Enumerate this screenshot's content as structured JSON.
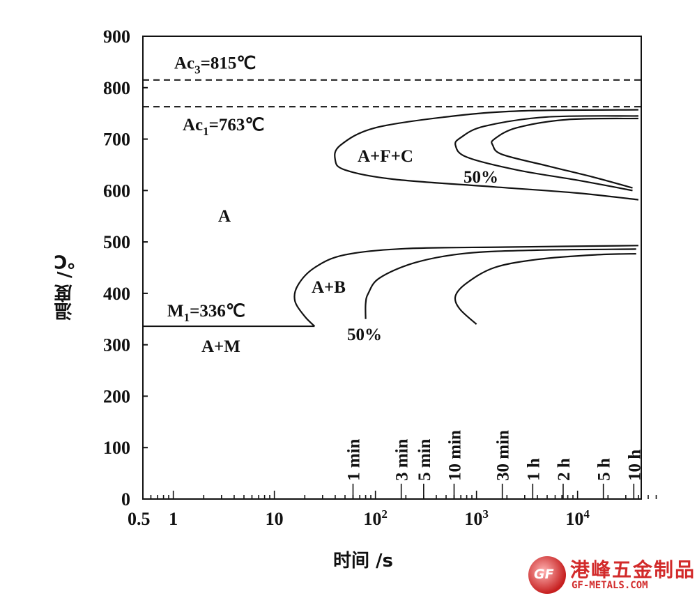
{
  "chart_data": {
    "type": "line",
    "title": "",
    "xlabel": "时间 /s",
    "ylabel": "温度 /℃",
    "x_scale": "log",
    "xlim": [
      0.5,
      60000
    ],
    "ylim": [
      0,
      900
    ],
    "x_tick_labels": [
      {
        "value": 0.5,
        "label": "0.5"
      },
      {
        "value": 1,
        "label": "1"
      },
      {
        "value": 10,
        "label": "10"
      },
      {
        "value": 100,
        "label": "10",
        "sup": "2"
      },
      {
        "value": 1000,
        "label": "10",
        "sup": "3"
      },
      {
        "value": 10000,
        "label": "10",
        "sup": "4"
      }
    ],
    "y_ticks": [
      0,
      100,
      200,
      300,
      400,
      500,
      600,
      700,
      800,
      900
    ],
    "time_markers": [
      {
        "label": "1 min",
        "value": 60
      },
      {
        "label": "3 min",
        "value": 180
      },
      {
        "label": "5 min",
        "value": 300
      },
      {
        "label": "10 min",
        "value": 600
      },
      {
        "label": "30 min",
        "value": 1800
      },
      {
        "label": "1 h",
        "value": 3600
      },
      {
        "label": "2 h",
        "value": 7200
      },
      {
        "label": "5 h",
        "value": 18000
      },
      {
        "label": "10 h",
        "value": 36000
      }
    ],
    "reference_lines": [
      {
        "name": "Ac3",
        "label_main": "Ac",
        "label_sub": "3",
        "label_rest": "=815℃",
        "y": 815,
        "style": "dashed"
      },
      {
        "name": "Ac1",
        "label_main": "Ac",
        "label_sub": "1",
        "label_rest": "=763℃",
        "y": 763,
        "style": "dashed"
      },
      {
        "name": "M1",
        "label_main": "M",
        "label_sub": "1",
        "label_rest": "=336℃",
        "y": 336,
        "style": "solid"
      }
    ],
    "series": [
      {
        "name": "",
        "points": [
          [
            40000,
            757
          ],
          [
            3000,
            755
          ],
          [
            600,
            745
          ],
          [
            100,
            722
          ],
          [
            45,
            688
          ],
          [
            40,
            660
          ],
          [
            50,
            640
          ],
          [
            150,
            622
          ],
          [
            1500,
            607
          ],
          [
            10000,
            595
          ],
          [
            40000,
            582
          ]
        ]
      },
      {
        "name": "",
        "points": [
          [
            40000,
            745
          ],
          [
            5000,
            743
          ],
          [
            1200,
            725
          ],
          [
            700,
            703
          ],
          [
            620,
            688
          ],
          [
            800,
            665
          ],
          [
            2500,
            640
          ],
          [
            10000,
            620
          ],
          [
            35000,
            600
          ]
        ]
      },
      {
        "name": "",
        "points": [
          [
            40000,
            740
          ],
          [
            8000,
            738
          ],
          [
            2500,
            722
          ],
          [
            1500,
            700
          ],
          [
            1450,
            688
          ],
          [
            1800,
            670
          ],
          [
            5000,
            648
          ],
          [
            15000,
            625
          ],
          [
            35000,
            605
          ]
        ]
      },
      {
        "name": "",
        "points": [
          [
            40000,
            493
          ],
          [
            2000,
            490
          ],
          [
            200,
            487
          ],
          [
            50,
            475
          ],
          [
            25,
            450
          ],
          [
            17,
            415
          ],
          [
            16,
            385
          ],
          [
            20,
            355
          ],
          [
            25,
            336
          ]
        ]
      },
      {
        "name": "",
        "points": [
          [
            38000,
            486
          ],
          [
            4000,
            484
          ],
          [
            800,
            478
          ],
          [
            250,
            460
          ],
          [
            110,
            430
          ],
          [
            85,
            400
          ],
          [
            80,
            380
          ],
          [
            80,
            350
          ]
        ]
      },
      {
        "name": "",
        "points": [
          [
            38000,
            477
          ],
          [
            15000,
            475
          ],
          [
            4000,
            466
          ],
          [
            1500,
            450
          ],
          [
            800,
            420
          ],
          [
            620,
            395
          ],
          [
            680,
            370
          ],
          [
            1000,
            340
          ]
        ]
      }
    ],
    "region_labels": [
      "A",
      "A+F+C",
      "A+B",
      "A+M"
    ],
    "percent_labels": [
      "50%",
      "50%"
    ]
  },
  "watermark": {
    "mark_text": "GF",
    "name_cn": "港峰五金制品",
    "url": "GF-METALS.COM",
    "color": "#d22a2a"
  }
}
